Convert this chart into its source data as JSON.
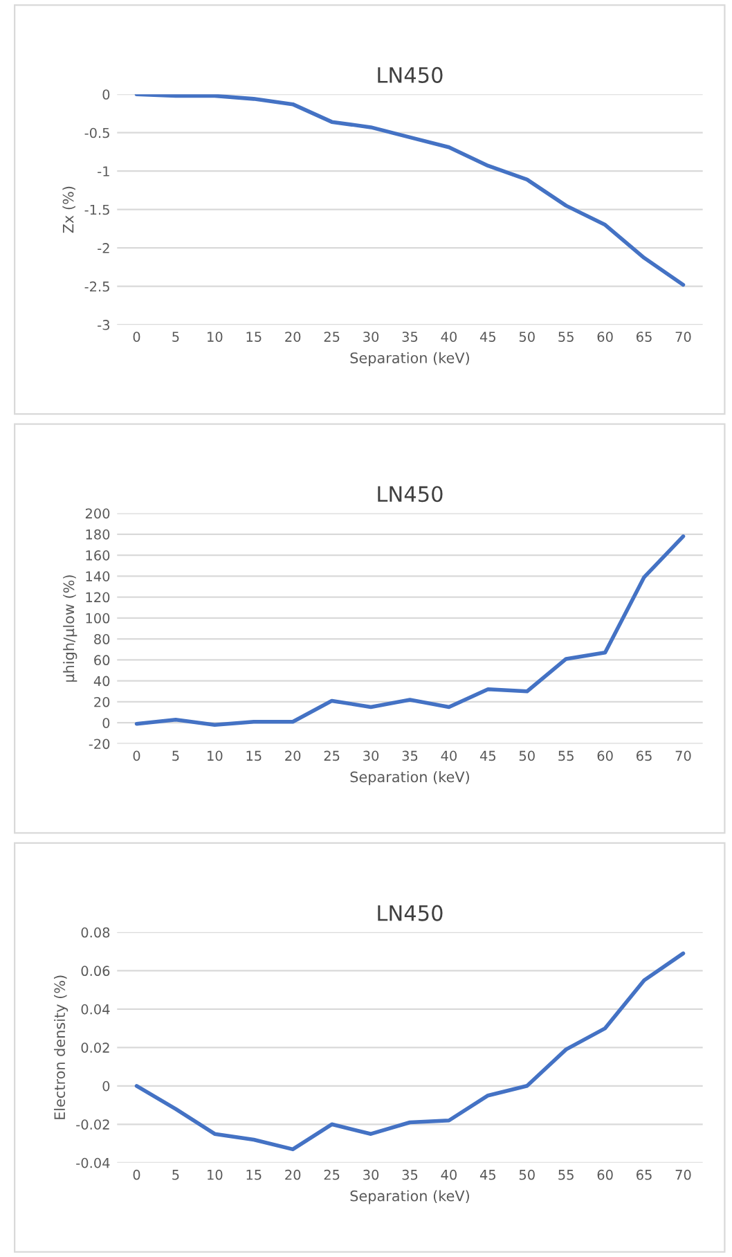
{
  "chart_data": [
    {
      "type": "line",
      "title": "LN450",
      "xlabel": "Separation (keV)",
      "ylabel": "Zx (%)",
      "categories": [
        "0",
        "5",
        "10",
        "15",
        "20",
        "25",
        "30",
        "35",
        "40",
        "45",
        "50",
        "55",
        "60",
        "65",
        "70"
      ],
      "series": [
        {
          "color": "#4472c4",
          "values": [
            0,
            -0.02,
            -0.02,
            -0.06,
            -0.13,
            -0.36,
            -0.43,
            -0.56,
            -0.69,
            -0.93,
            -1.11,
            -1.45,
            -1.7,
            -2.13,
            -2.48
          ]
        }
      ],
      "ylim": [
        -3,
        0
      ],
      "yticks": [
        -3,
        -2.5,
        -2,
        -1.5,
        -1,
        -0.5,
        0
      ],
      "grid": "y"
    },
    {
      "type": "line",
      "title": "LN450",
      "xlabel": "Separation (keV)",
      "ylabel": "µhigh/µlow (%)",
      "categories": [
        "0",
        "5",
        "10",
        "15",
        "20",
        "25",
        "30",
        "35",
        "40",
        "45",
        "50",
        "55",
        "60",
        "65",
        "70"
      ],
      "series": [
        {
          "color": "#4472c4",
          "values": [
            -1,
            3,
            -2,
            1,
            1,
            21,
            15,
            22,
            15,
            32,
            30,
            61,
            67,
            139,
            178
          ]
        }
      ],
      "ylim": [
        -20,
        200
      ],
      "yticks": [
        -20,
        0,
        20,
        40,
        60,
        80,
        100,
        120,
        140,
        160,
        180,
        200
      ],
      "grid": "y"
    },
    {
      "type": "line",
      "title": "LN450",
      "xlabel": "Separation (keV)",
      "ylabel": "Electron density (%)",
      "categories": [
        "0",
        "5",
        "10",
        "15",
        "20",
        "25",
        "30",
        "35",
        "40",
        "45",
        "50",
        "55",
        "60",
        "65",
        "70"
      ],
      "series": [
        {
          "color": "#4472c4",
          "values": [
            0,
            -0.012,
            -0.025,
            -0.028,
            -0.033,
            -0.02,
            -0.025,
            -0.019,
            -0.018,
            -0.005,
            0,
            0.019,
            0.03,
            0.055,
            0.069
          ]
        }
      ],
      "ylim": [
        -0.04,
        0.08
      ],
      "yticks": [
        -0.04,
        -0.02,
        0,
        0.02,
        0.04,
        0.06,
        0.08
      ],
      "grid": "y"
    }
  ]
}
